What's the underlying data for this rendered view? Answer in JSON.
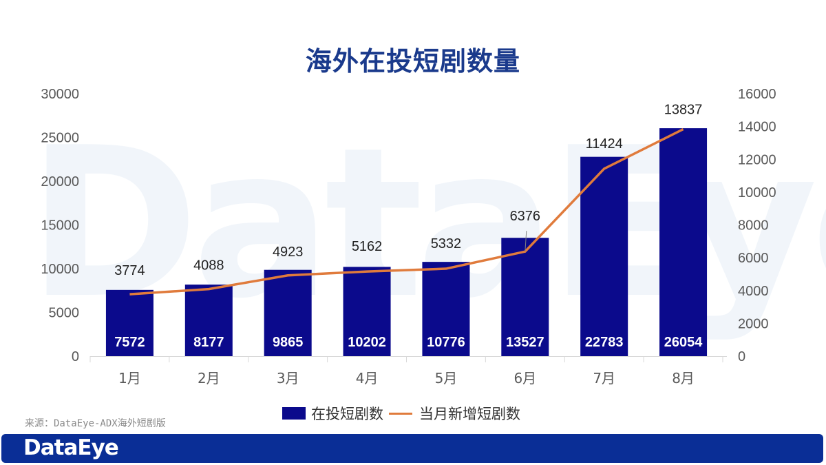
{
  "header": {
    "title": "海外在投短剧数量"
  },
  "watermark": "DataEye",
  "legend": {
    "bar_label": "在投短剧数",
    "line_label": "当月新增短剧数"
  },
  "source": "来源：DataEye-ADX海外短剧版",
  "footer": {
    "logo": "DataEye"
  },
  "colors": {
    "bar": "#0b0a8c",
    "line": "#e07b3c",
    "title": "#1a3a8c",
    "footer": "#0a2e96"
  },
  "chart_data": {
    "type": "bar+line",
    "title": "海外在投短剧数量",
    "categories": [
      "1月",
      "2月",
      "3月",
      "4月",
      "5月",
      "6月",
      "7月",
      "8月"
    ],
    "series": [
      {
        "name": "在投短剧数",
        "type": "bar",
        "axis": "left",
        "values": [
          7572,
          8177,
          9865,
          10202,
          10776,
          13527,
          22783,
          26054
        ]
      },
      {
        "name": "当月新增短剧数",
        "type": "line",
        "axis": "right",
        "values": [
          3774,
          4088,
          4923,
          5162,
          5332,
          6376,
          11424,
          13837
        ]
      }
    ],
    "left_axis": {
      "ylim": [
        0,
        30000
      ],
      "ticks": [
        0,
        5000,
        10000,
        15000,
        20000,
        25000,
        30000
      ]
    },
    "right_axis": {
      "ylim": [
        0,
        16000
      ],
      "ticks": [
        0,
        2000,
        4000,
        6000,
        8000,
        10000,
        12000,
        14000,
        16000
      ]
    },
    "xlabel": "",
    "ylabel": "",
    "grid": false,
    "legend_position": "bottom"
  }
}
